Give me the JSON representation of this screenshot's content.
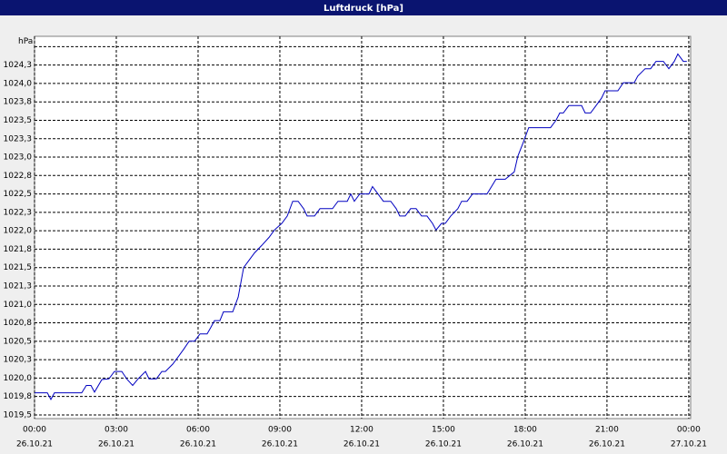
{
  "chart_data": {
    "type": "line",
    "title": "Luftdruck [hPa]",
    "x": [
      0,
      0.47,
      0.6,
      0.73,
      1.73,
      1.9,
      2.07,
      2.2,
      2.47,
      2.73,
      2.93,
      3.2,
      3.4,
      3.6,
      3.8,
      4.07,
      4.2,
      4.47,
      4.67,
      4.8,
      5.07,
      5.27,
      5.47,
      5.67,
      5.87,
      6.07,
      6.33,
      6.47,
      6.6,
      6.8,
      6.93,
      7.27,
      7.47,
      7.67,
      7.87,
      8.07,
      8.33,
      8.6,
      8.8,
      9.07,
      9.27,
      9.47,
      9.67,
      9.87,
      10,
      10.27,
      10.47,
      10.93,
      11.13,
      11.47,
      11.6,
      11.73,
      11.93,
      12.27,
      12.4,
      12.6,
      12.8,
      13.07,
      13.27,
      13.4,
      13.6,
      13.8,
      14,
      14.2,
      14.4,
      14.6,
      14.73,
      14.93,
      15.07,
      15.27,
      15.53,
      15.67,
      15.87,
      16.07,
      16.6,
      16.93,
      17.27,
      17.6,
      17.73,
      17.93,
      18.13,
      18.93,
      19.13,
      19.27,
      19.4,
      19.6,
      20.07,
      20.2,
      20.4,
      20.6,
      20.8,
      20.93,
      21.4,
      21.6,
      22,
      22.13,
      22.4,
      22.6,
      22.8,
      23.07,
      23.27,
      23.47,
      23.6,
      23.8,
      23.93
    ],
    "series": [
      {
        "name": "Luftdruck",
        "color": "#0000c0",
        "values": [
          1019.8,
          1019.8,
          1019.71,
          1019.8,
          1019.8,
          1019.9,
          1019.9,
          1019.81,
          1019.98,
          1019.99,
          1020.09,
          1020.09,
          1019.98,
          1019.9,
          1019.99,
          1020.09,
          1019.99,
          1019.99,
          1020.09,
          1020.09,
          1020.19,
          1020.29,
          1020.39,
          1020.5,
          1020.5,
          1020.6,
          1020.6,
          1020.69,
          1020.78,
          1020.78,
          1020.9,
          1020.9,
          1021.1,
          1021.5,
          1021.6,
          1021.7,
          1021.8,
          1021.91,
          1022.01,
          1022.1,
          1022.2,
          1022.4,
          1022.4,
          1022.3,
          1022.2,
          1022.2,
          1022.3,
          1022.3,
          1022.4,
          1022.4,
          1022.5,
          1022.4,
          1022.5,
          1022.5,
          1022.6,
          1022.5,
          1022.4,
          1022.4,
          1022.3,
          1022.2,
          1022.2,
          1022.3,
          1022.3,
          1022.2,
          1022.2,
          1022.1,
          1022.01,
          1022.1,
          1022.1,
          1022.2,
          1022.3,
          1022.4,
          1022.4,
          1022.5,
          1022.5,
          1022.7,
          1022.7,
          1022.8,
          1023.01,
          1023.2,
          1023.4,
          1023.4,
          1023.5,
          1023.6,
          1023.6,
          1023.7,
          1023.7,
          1023.6,
          1023.6,
          1023.7,
          1023.8,
          1023.9,
          1023.9,
          1024.01,
          1024.01,
          1024.1,
          1024.2,
          1024.2,
          1024.3,
          1024.3,
          1024.2,
          1024.3,
          1024.4,
          1024.3,
          1024.3
        ]
      }
    ],
    "xlim": [
      0,
      24.07
    ],
    "xticks": [
      {
        "value": 0,
        "label": "00:00"
      },
      {
        "value": 3,
        "label": "03:00"
      },
      {
        "value": 6,
        "label": "06:00"
      },
      {
        "value": 9,
        "label": "09:00"
      },
      {
        "value": 12,
        "label": "12:00"
      },
      {
        "value": 15,
        "label": "15:00"
      },
      {
        "value": 18,
        "label": "18:00"
      },
      {
        "value": 21,
        "label": "21:00"
      },
      {
        "value": 24,
        "label": "00:00"
      }
    ],
    "xtick_dates": [
      "26.10.21",
      "26.10.21",
      "26.10.21",
      "26.10.21",
      "26.10.21",
      "26.10.21",
      "26.10.21",
      "26.10.21",
      "27.10.21"
    ],
    "ylim": [
      1019.45,
      1024.64
    ],
    "yticks": [
      {
        "value": 1019.5,
        "label": "1019,5"
      },
      {
        "value": 1019.75,
        "label": "1019,8"
      },
      {
        "value": 1020,
        "label": "1020,0"
      },
      {
        "value": 1020.25,
        "label": "1020,3"
      },
      {
        "value": 1020.5,
        "label": "1020,5"
      },
      {
        "value": 1020.75,
        "label": "1020,8"
      },
      {
        "value": 1021,
        "label": "1021,0"
      },
      {
        "value": 1021.25,
        "label": "1021,3"
      },
      {
        "value": 1021.5,
        "label": "1021,5"
      },
      {
        "value": 1021.75,
        "label": "1021,8"
      },
      {
        "value": 1022,
        "label": "1022,0"
      },
      {
        "value": 1022.25,
        "label": "1022,3"
      },
      {
        "value": 1022.5,
        "label": "1022,5"
      },
      {
        "value": 1022.75,
        "label": "1022,8"
      },
      {
        "value": 1023,
        "label": "1023,0"
      },
      {
        "value": 1023.25,
        "label": "1023,3"
      },
      {
        "value": 1023.5,
        "label": "1023,5"
      },
      {
        "value": 1023.75,
        "label": "1023,8"
      },
      {
        "value": 1024,
        "label": "1024,0"
      },
      {
        "value": 1024.25,
        "label": "1024,3"
      },
      {
        "value": 1024.5,
        "label": "hPa"
      }
    ],
    "grid": true
  }
}
